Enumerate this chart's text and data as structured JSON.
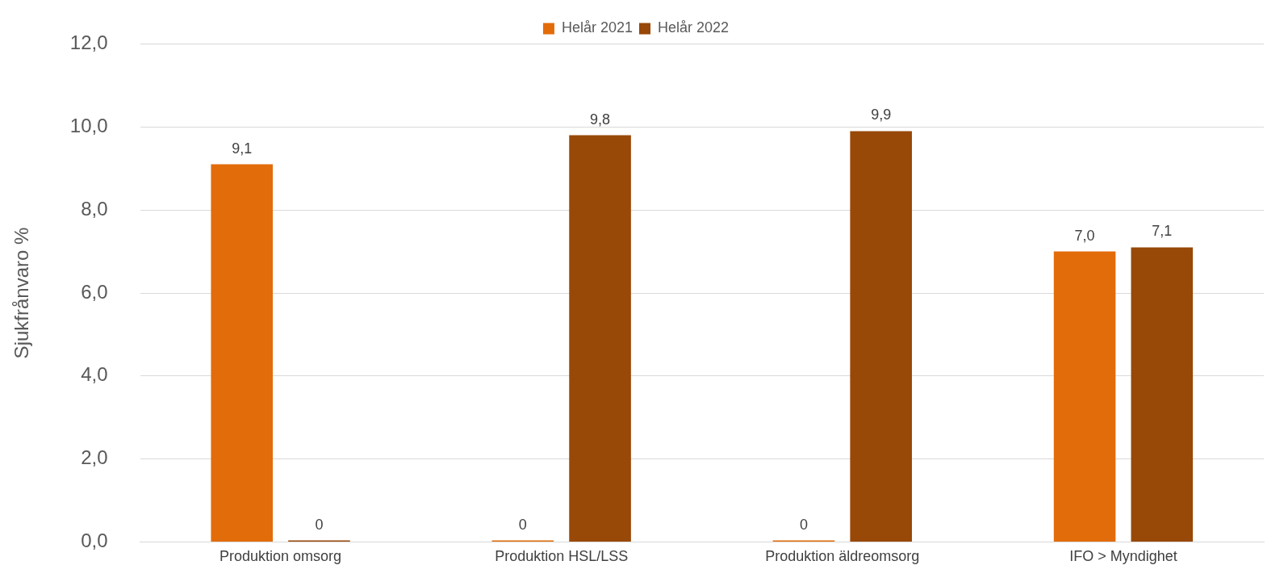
{
  "chart_data": {
    "type": "bar",
    "ylabel": "Sjukfrånvaro %",
    "categories": [
      "Produktion omsorg",
      "Produktion HSL/LSS",
      "Produktion äldreomsorg",
      "IFO > Myndighet"
    ],
    "series": [
      {
        "name": "Helår 2021",
        "color": "#e36c0a",
        "values": [
          9.1,
          0,
          0,
          7.0
        ],
        "value_labels": [
          "9,1",
          "0",
          "0",
          "7,0"
        ]
      },
      {
        "name": "Helår 2022",
        "color": "#984807",
        "values": [
          0,
          9.8,
          9.9,
          7.1
        ],
        "value_labels": [
          "0",
          "9,8",
          "9,9",
          "7,1"
        ]
      }
    ],
    "ylim": [
      0,
      12
    ],
    "yticks": [
      {
        "value": 0,
        "label": "0,0"
      },
      {
        "value": 2,
        "label": "2,0"
      },
      {
        "value": 4,
        "label": "4,0"
      },
      {
        "value": 6,
        "label": "6,0"
      },
      {
        "value": 8,
        "label": "8,0"
      },
      {
        "value": 10,
        "label": "10,0"
      },
      {
        "value": 12,
        "label": "12,0"
      }
    ],
    "grid": "y",
    "legend": "top"
  }
}
